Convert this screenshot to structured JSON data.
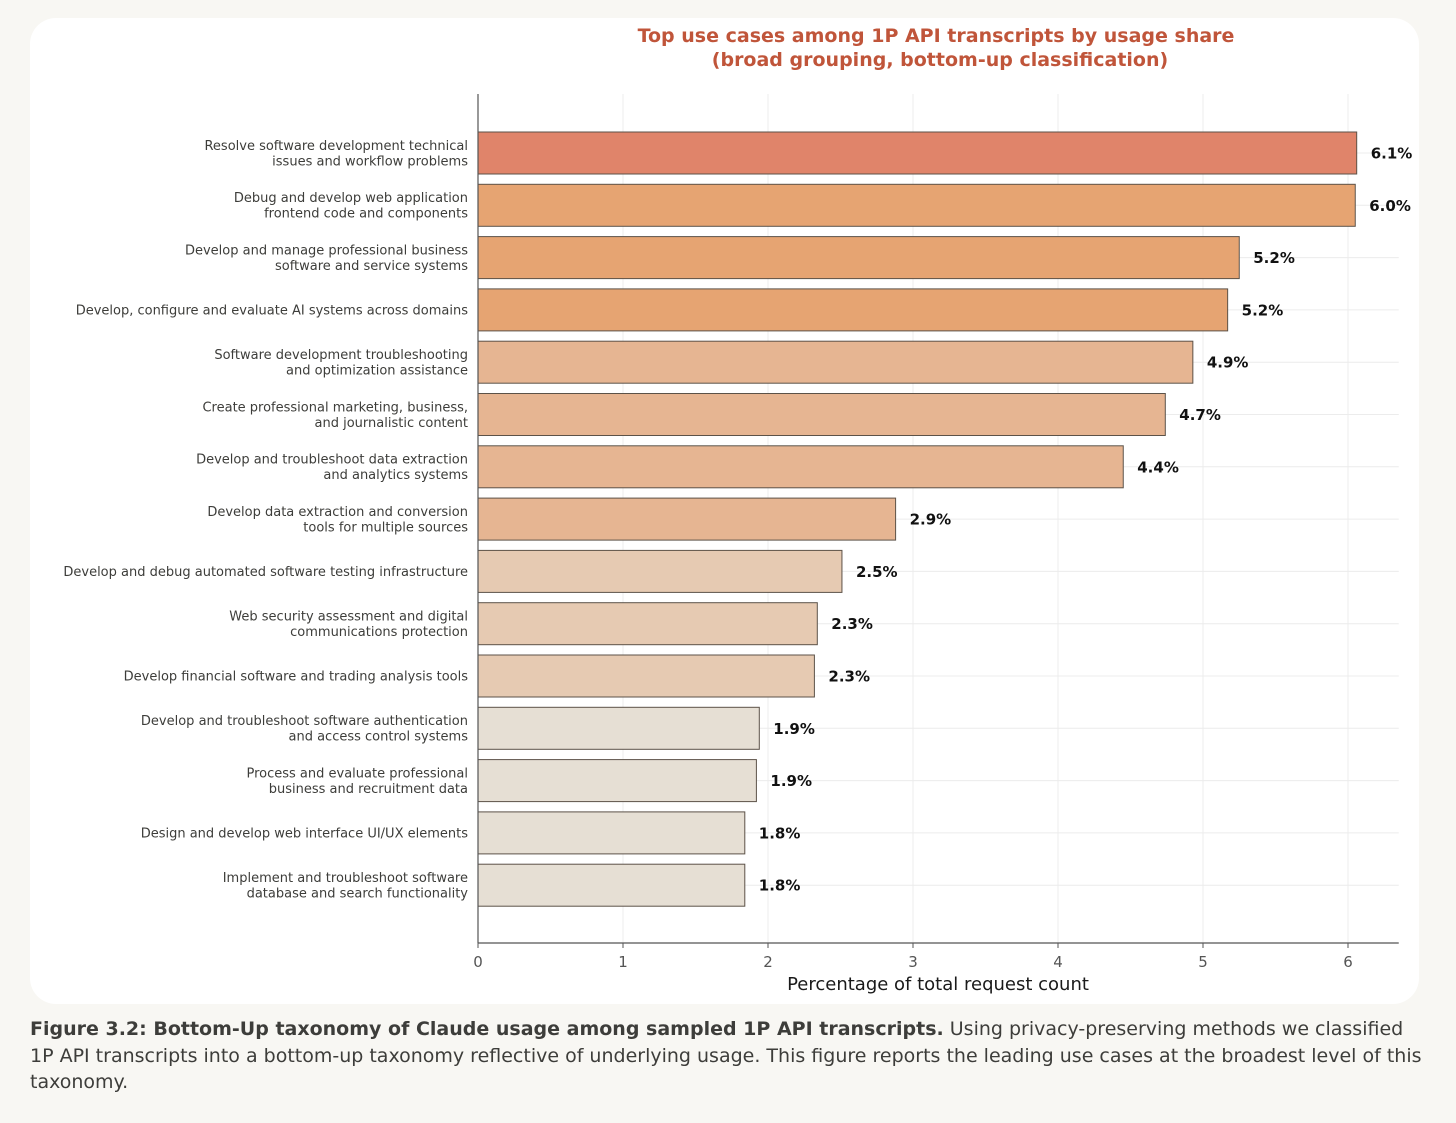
{
  "chart_data": {
    "type": "bar",
    "orientation": "horizontal",
    "title": "Top use cases among 1P API transcripts by usage share",
    "subtitle": "(broad grouping, bottom-up classification)",
    "xlabel": "Percentage of total request count",
    "ylabel": "",
    "xlim": [
      0,
      6.35
    ],
    "xticks": [
      0,
      1,
      2,
      3,
      4,
      5,
      6
    ],
    "grid": true,
    "categories": [
      [
        "Resolve software development technical",
        "issues and workflow problems"
      ],
      [
        "Debug and develop web application",
        "frontend code and components"
      ],
      [
        "Develop and manage professional business",
        "software and service systems"
      ],
      [
        "Develop, configure and evaluate AI systems across domains"
      ],
      [
        "Software development troubleshooting",
        "and optimization assistance"
      ],
      [
        "Create professional marketing, business,",
        "and journalistic content"
      ],
      [
        "Develop and troubleshoot data extraction",
        "and analytics systems"
      ],
      [
        "Develop data extraction and conversion",
        "tools for multiple sources"
      ],
      [
        "Develop and debug automated software testing infrastructure"
      ],
      [
        "Web security assessment and digital",
        "communications protection"
      ],
      [
        "Develop financial software and trading analysis tools"
      ],
      [
        "Develop and troubleshoot software authentication",
        "and access control systems"
      ],
      [
        "Process and evaluate professional",
        "business and recruitment data"
      ],
      [
        "Design and develop web interface UI/UX elements"
      ],
      [
        "Implement and troubleshoot software",
        "database and search functionality"
      ]
    ],
    "values": [
      6.06,
      6.05,
      5.25,
      5.17,
      4.93,
      4.74,
      4.45,
      2.88,
      2.51,
      2.34,
      2.32,
      1.94,
      1.92,
      1.84,
      1.84
    ],
    "value_labels": [
      "6.1%",
      "6.0%",
      "5.2%",
      "5.2%",
      "4.9%",
      "4.7%",
      "4.4%",
      "2.9%",
      "2.5%",
      "2.3%",
      "2.3%",
      "1.9%",
      "1.9%",
      "1.8%",
      "1.8%"
    ],
    "bar_colors": [
      "#e0846a",
      "#e6a472",
      "#e6a472",
      "#e6a472",
      "#e6b592",
      "#e6b592",
      "#e6b592",
      "#e6b592",
      "#e6cab2",
      "#e6cab2",
      "#e6cab2",
      "#e6dfd4",
      "#e6dfd4",
      "#e6dfd4",
      "#e6dfd4"
    ],
    "title_color": "#c0553a",
    "bar_stroke": "#5c5248"
  },
  "caption": {
    "bold": "Figure 3.2: Bottom-Up taxonomy of Claude usage among sampled 1P API transcripts.",
    "text": " Using privacy-preserving methods we classified 1P API transcripts into a bottom-up taxonomy reflective of underlying usage. This figure reports the leading use cases at the broadest level of this taxonomy."
  }
}
